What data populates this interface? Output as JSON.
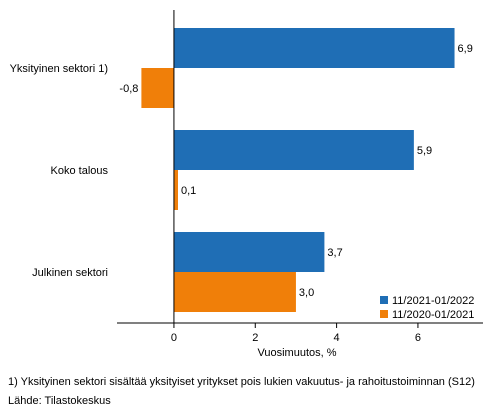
{
  "chart_data": {
    "type": "bar",
    "orientation": "horizontal",
    "categories": [
      "Yksityinen sektori 1)",
      "Koko talous",
      "Julkinen sektori"
    ],
    "series": [
      {
        "name": "11/2021-01/2022",
        "color": "#1f6eb5",
        "values": [
          6.9,
          5.9,
          3.7
        ],
        "labels": [
          "6,9",
          "5,9",
          "3,7"
        ]
      },
      {
        "name": "11/2020-01/2021",
        "color": "#f07f09",
        "values": [
          -0.8,
          0.1,
          3.0
        ],
        "labels": [
          "-0,8",
          "0,1",
          "3,0"
        ]
      }
    ],
    "xlabel": "Vuosimuutos, %",
    "xlim": [
      -1.4,
      7.6
    ],
    "xticks": [
      0,
      2,
      4,
      6
    ],
    "xtick_labels": [
      "0",
      "2",
      "4",
      "6"
    ],
    "legend_position": "bottom-right",
    "grid": false
  },
  "footnote": "1) Yksityinen sektori sisältää yksityiset yritykset pois lukien vakuutus- ja rahoitustoiminnan (S12)",
  "source": "Lähde: Tilastokeskus"
}
